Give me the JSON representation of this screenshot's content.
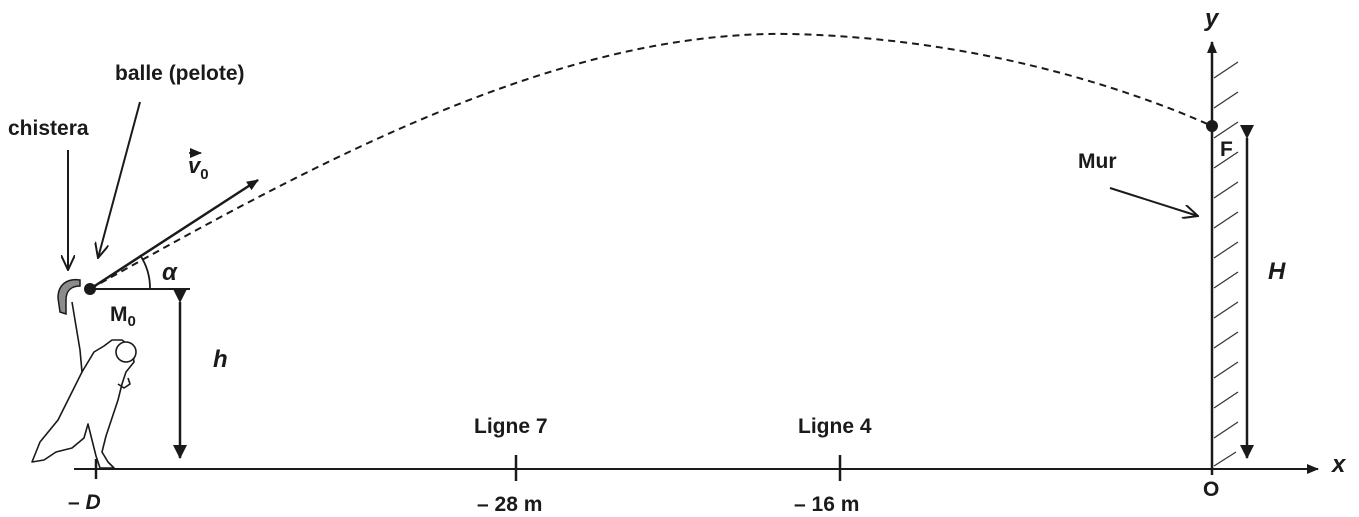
{
  "labels": {
    "ball": "balle (pelote)",
    "chistera": "chistera",
    "velocity_symbol": "v",
    "velocity_subscript": "0",
    "angle": "α",
    "start_point": "M",
    "start_point_subscript": "0",
    "launch_height": "h",
    "wall": "Mur",
    "impact_point": "F",
    "wall_height": "H",
    "x_axis": "x",
    "y_axis": "y",
    "origin": "O",
    "line7": "Ligne 7",
    "line4": "Ligne 4",
    "tick_minus_d_sign": "–",
    "tick_minus_d_symbol": "D",
    "tick_28": "– 28 m",
    "tick_16": "– 16 m"
  },
  "colors": {
    "ink": "#1a1a1a",
    "hatch": "#333333",
    "chistera_fill": "#8c8c8c"
  },
  "icons": {
    "player": "pelota-player-icon",
    "chistera": "chistera-basket-icon"
  }
}
